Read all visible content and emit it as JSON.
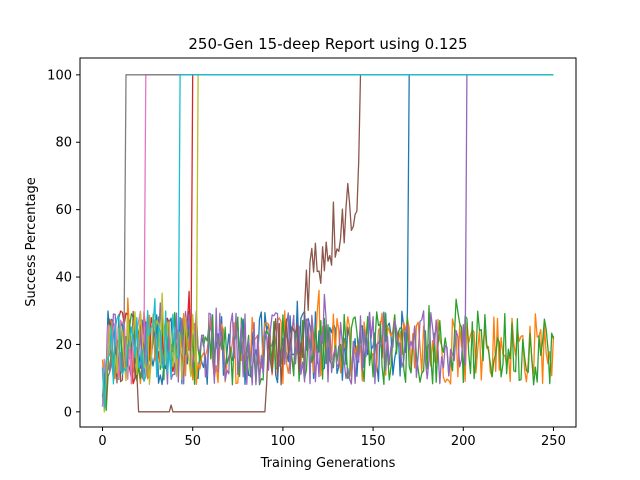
{
  "chart_data": {
    "type": "line",
    "title": "250-Gen 15-deep Report using 0.125",
    "xlabel": "Training Generations",
    "ylabel": "Success Percentage",
    "xlim": [
      -12.5,
      262.5
    ],
    "ylim": [
      -4.5,
      105
    ],
    "xticks": [
      0,
      50,
      100,
      150,
      200,
      250
    ],
    "yticks": [
      0,
      20,
      40,
      60,
      80,
      100
    ],
    "grid": false,
    "legend": "none",
    "generations": 250,
    "noise_band": [
      8,
      30
    ],
    "series": [
      {
        "color": "#1f77b4",
        "jump_gen": 170,
        "jump_to": 100
      },
      {
        "color": "#ff7f0e",
        "jump_gen": null
      },
      {
        "color": "#2ca02c",
        "jump_gen": null
      },
      {
        "color": "#d62728",
        "jump_gen": 50,
        "jump_to": 100
      },
      {
        "color": "#9467bd",
        "jump_gen": 202,
        "jump_to": 100
      },
      {
        "color": "#8c564b",
        "jump_gen": 143,
        "jump_to": 100,
        "climb_start": 112
      },
      {
        "color": "#e377c2",
        "jump_gen": 24,
        "jump_to": 100
      },
      {
        "color": "#7f7f7f",
        "jump_gen": 13,
        "jump_to": 100
      },
      {
        "color": "#bcbd22",
        "jump_gen": 53,
        "jump_to": 100
      },
      {
        "color": "#17becf",
        "jump_gen": 43,
        "jump_to": 100
      }
    ]
  }
}
